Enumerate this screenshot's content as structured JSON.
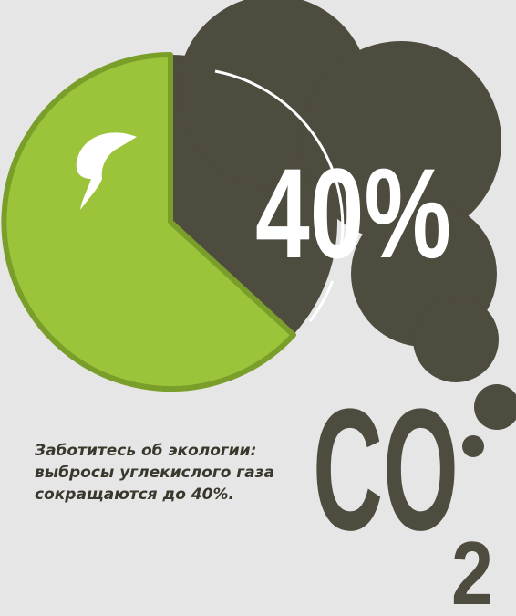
{
  "headline": "40%",
  "formula": {
    "main": "CO",
    "subscript": "2"
  },
  "caption": [
    "Заботитесь об экологии:",
    "выбросы углекислого газа",
    "сокращаются до 40%."
  ]
}
